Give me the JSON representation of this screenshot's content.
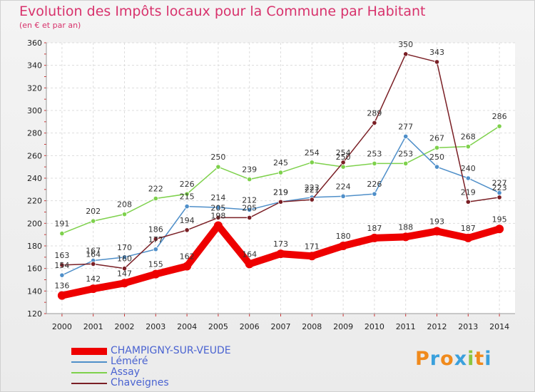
{
  "title": "Evolution des Impôts locaux pour la Commune par Habitant",
  "subtitle": "(en € et par an)",
  "logo": {
    "letters": [
      "P",
      "r",
      "o",
      "x",
      "i",
      "t",
      "i"
    ],
    "colors": [
      "#f08a1c",
      "#3aa0dc",
      "#f08a1c",
      "#3aa0dc",
      "#8cc63f",
      "#f08a1c",
      "#3aa0dc"
    ]
  },
  "chart_data": {
    "type": "line",
    "title": "Evolution des Impôts locaux pour la Commune par Habitant",
    "subtitle": "(en € et par an)",
    "x": [
      "2000",
      "2001",
      "2002",
      "2003",
      "2004",
      "2005",
      "2006",
      "2007",
      "2008",
      "2009",
      "2010",
      "2011",
      "2012",
      "2013",
      "2014"
    ],
    "ylim": [
      120,
      360
    ],
    "yticks": [
      "120",
      "140",
      "160",
      "180",
      "200",
      "220",
      "240",
      "260",
      "280",
      "300",
      "320",
      "340",
      "360"
    ],
    "grid": true,
    "legend_position": "bottom-left",
    "series": [
      {
        "name": "CHAMPIGNY-SUR-VEUDE",
        "color": "#ee0000",
        "values": [
          136,
          142,
          147,
          155,
          162,
          198,
          164,
          173,
          171,
          180,
          187,
          188,
          193,
          187,
          195
        ],
        "labels": [
          "136",
          "142",
          "147",
          "155",
          "162",
          "198",
          "164",
          "173",
          "171",
          "180",
          "187",
          "188",
          "193",
          "187",
          "195"
        ]
      },
      {
        "name": "Léméré",
        "color": "#4f8fc9",
        "values": [
          154,
          167,
          170,
          177,
          215,
          214,
          212,
          219,
          223,
          224,
          226,
          277,
          250,
          240,
          227
        ],
        "labels": [
          "154",
          "167",
          "170",
          "177",
          "215",
          "214",
          "212",
          "219",
          "223",
          "224",
          "226",
          "277",
          "250",
          "240",
          "227"
        ]
      },
      {
        "name": "Assay",
        "color": "#7ed14c",
        "values": [
          191,
          202,
          208,
          222,
          226,
          250,
          239,
          245,
          254,
          250,
          253,
          253,
          267,
          268,
          286
        ],
        "labels": [
          "191",
          "202",
          "208",
          "222",
          "226",
          "250",
          "239",
          "245",
          "254",
          "250",
          "253",
          "253",
          "267",
          "268",
          "286"
        ]
      },
      {
        "name": "Chaveignes",
        "color": "#7a1f25",
        "values": [
          163,
          164,
          160,
          186,
          194,
          205,
          205,
          219,
          221,
          254,
          289,
          350,
          343,
          219,
          223
        ],
        "labels": [
          "163",
          "164",
          "160",
          "186",
          "194",
          "205",
          "205",
          "219",
          "221",
          "254",
          "289",
          "350",
          "343",
          "219",
          "223"
        ]
      }
    ]
  }
}
